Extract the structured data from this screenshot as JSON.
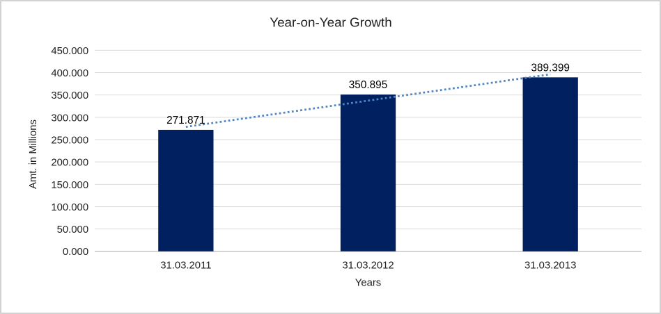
{
  "chart_data": {
    "type": "bar",
    "title": "Year-on-Year Growth",
    "xlabel": "Years",
    "ylabel": "Amt. in Millions",
    "categories": [
      "31.03.2011",
      "31.03.2012",
      "31.03.2013"
    ],
    "values": [
      271.871,
      350.895,
      389.399
    ],
    "value_labels": [
      "271.871",
      "350.895",
      "389.399"
    ],
    "ylim": [
      0,
      450
    ],
    "ytick_step": 50,
    "ytick_labels": [
      "0.000",
      "50.000",
      "100.000",
      "150.000",
      "200.000",
      "250.000",
      "300.000",
      "350.000",
      "400.000",
      "450.000"
    ],
    "grid": "horizontal-on",
    "legend": "none",
    "trendline": {
      "type": "linear",
      "style": "dotted",
      "values": [
        278.6,
        337.4,
        396.2
      ]
    },
    "colors": {
      "bar": "#002060",
      "trendline": "#4e86c8",
      "gridline": "#d9d9d9",
      "axis_line": "#bfbfbf",
      "text": "#1f1f1f",
      "background": "#ffffff",
      "frame_border": "#d2d2d2"
    }
  }
}
